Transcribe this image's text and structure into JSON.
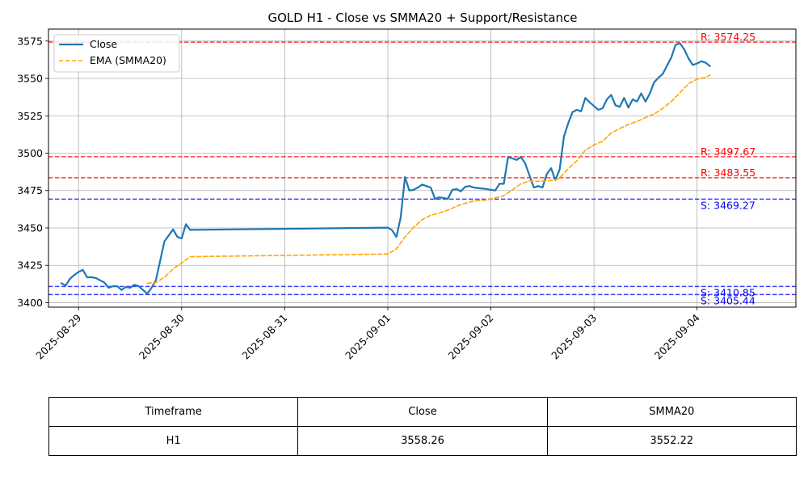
{
  "chart_data": {
    "type": "line",
    "title": "GOLD H1 - Close vs SMMA20 + Support/Resistance",
    "xlabel": "",
    "ylabel": "",
    "ylim": [
      3397,
      3583
    ],
    "xlim": [
      "2025-08-28 17:00",
      "2025-09-04 23:00"
    ],
    "x_ticks": [
      "2025-08-29",
      "2025-08-30",
      "2025-08-31",
      "2025-09-01",
      "2025-09-02",
      "2025-09-03",
      "2025-09-04"
    ],
    "y_ticks": [
      3400,
      3425,
      3450,
      3475,
      3500,
      3525,
      3550,
      3575
    ],
    "grid": true,
    "legend": {
      "placement": "top-left",
      "entries": [
        "Close",
        "EMA (SMMA20)"
      ]
    },
    "colors": {
      "close": "#1f77b4",
      "smma": "#ffa500",
      "resistance": "#ff0000",
      "support": "#0000ff",
      "grid": "#b0b0b0"
    },
    "series": [
      {
        "name": "Close",
        "style": "solid",
        "points": [
          [
            "2025-08-28 20:00",
            3413
          ],
          [
            "2025-08-28 21:00",
            3411.5
          ],
          [
            "2025-08-28 22:00",
            3416
          ],
          [
            "2025-08-28 23:00",
            3418.5
          ],
          [
            "2025-08-29 00:00",
            3420.5
          ],
          [
            "2025-08-29 01:00",
            3422
          ],
          [
            "2025-08-29 02:00",
            3417
          ],
          [
            "2025-08-29 03:00",
            3417
          ],
          [
            "2025-08-29 04:00",
            3416.5
          ],
          [
            "2025-08-29 05:00",
            3415
          ],
          [
            "2025-08-29 06:00",
            3413.5
          ],
          [
            "2025-08-29 07:00",
            3410
          ],
          [
            "2025-08-29 08:00",
            3411
          ],
          [
            "2025-08-29 09:00",
            3411
          ],
          [
            "2025-08-29 10:00",
            3408.5
          ],
          [
            "2025-08-29 11:00",
            3410.5
          ],
          [
            "2025-08-29 12:00",
            3410
          ],
          [
            "2025-08-29 13:00",
            3412
          ],
          [
            "2025-08-29 14:00",
            3411
          ],
          [
            "2025-08-29 15:00",
            3408.5
          ],
          [
            "2025-08-29 16:00",
            3406
          ],
          [
            "2025-08-29 17:00",
            3410
          ],
          [
            "2025-08-29 18:00",
            3415
          ],
          [
            "2025-08-29 19:00",
            3428
          ],
          [
            "2025-08-29 20:00",
            3441
          ],
          [
            "2025-08-29 21:00",
            3445
          ],
          [
            "2025-08-29 22:00",
            3449
          ],
          [
            "2025-08-29 23:00",
            3444
          ],
          [
            "2025-08-30 00:00",
            3443
          ],
          [
            "2025-08-30 01:00",
            3452.5
          ],
          [
            "2025-08-30 02:00",
            3448.7
          ],
          [
            "2025-09-01 00:00",
            3450.2
          ],
          [
            "2025-09-01 01:00",
            3448.5
          ],
          [
            "2025-09-01 02:00",
            3444
          ],
          [
            "2025-09-01 03:00",
            3457
          ],
          [
            "2025-09-01 04:00",
            3484
          ],
          [
            "2025-09-01 05:00",
            3475
          ],
          [
            "2025-09-01 06:00",
            3475.5
          ],
          [
            "2025-09-01 07:00",
            3477
          ],
          [
            "2025-09-01 08:00",
            3479
          ],
          [
            "2025-09-01 09:00",
            3478
          ],
          [
            "2025-09-01 10:00",
            3477
          ],
          [
            "2025-09-01 11:00",
            3469.5
          ],
          [
            "2025-09-01 12:00",
            3470.5
          ],
          [
            "2025-09-01 13:00",
            3470
          ],
          [
            "2025-09-01 14:00",
            3469.5
          ],
          [
            "2025-09-01 15:00",
            3475.5
          ],
          [
            "2025-09-01 16:00",
            3476
          ],
          [
            "2025-09-01 17:00",
            3474.5
          ],
          [
            "2025-09-01 18:00",
            3477.5
          ],
          [
            "2025-09-01 19:00",
            3478
          ],
          [
            "2025-09-01 20:00",
            3477
          ],
          [
            "2025-09-01 23:00",
            3476
          ],
          [
            "2025-09-02 01:00",
            3475
          ],
          [
            "2025-09-02 02:00",
            3479.5
          ],
          [
            "2025-09-02 03:00",
            3479.5
          ],
          [
            "2025-09-02 04:00",
            3497.5
          ],
          [
            "2025-09-02 05:00",
            3496.5
          ],
          [
            "2025-09-02 06:00",
            3495.5
          ],
          [
            "2025-09-02 07:00",
            3497.5
          ],
          [
            "2025-09-02 08:00",
            3493
          ],
          [
            "2025-09-02 09:00",
            3485
          ],
          [
            "2025-09-02 10:00",
            3477
          ],
          [
            "2025-09-02 11:00",
            3478
          ],
          [
            "2025-09-02 12:00",
            3477
          ],
          [
            "2025-09-02 13:00",
            3486
          ],
          [
            "2025-09-02 14:00",
            3490
          ],
          [
            "2025-09-02 15:00",
            3482
          ],
          [
            "2025-09-02 16:00",
            3489
          ],
          [
            "2025-09-02 17:00",
            3511
          ],
          [
            "2025-09-02 18:00",
            3520
          ],
          [
            "2025-09-02 19:00",
            3527.5
          ],
          [
            "2025-09-02 20:00",
            3529
          ],
          [
            "2025-09-02 21:00",
            3528
          ],
          [
            "2025-09-02 22:00",
            3537
          ],
          [
            "2025-09-02 23:00",
            3534
          ],
          [
            "2025-09-03 00:00",
            3531.5
          ],
          [
            "2025-09-03 01:00",
            3529
          ],
          [
            "2025-09-03 02:00",
            3530
          ],
          [
            "2025-09-03 03:00",
            3536
          ],
          [
            "2025-09-03 04:00",
            3539
          ],
          [
            "2025-09-03 05:00",
            3532
          ],
          [
            "2025-09-03 06:00",
            3531
          ],
          [
            "2025-09-03 07:00",
            3537
          ],
          [
            "2025-09-03 08:00",
            3530.5
          ],
          [
            "2025-09-03 09:00",
            3536
          ],
          [
            "2025-09-03 10:00",
            3534.5
          ],
          [
            "2025-09-03 11:00",
            3540
          ],
          [
            "2025-09-03 12:00",
            3534.5
          ],
          [
            "2025-09-03 13:00",
            3540
          ],
          [
            "2025-09-03 14:00",
            3547.5
          ],
          [
            "2025-09-03 15:00",
            3550.5
          ],
          [
            "2025-09-03 16:00",
            3553
          ],
          [
            "2025-09-03 17:00",
            3558.5
          ],
          [
            "2025-09-03 18:00",
            3564
          ],
          [
            "2025-09-03 19:00",
            3572.5
          ],
          [
            "2025-09-03 20:00",
            3573.5
          ],
          [
            "2025-09-03 21:00",
            3569.5
          ],
          [
            "2025-09-03 22:00",
            3563.5
          ],
          [
            "2025-09-03 23:00",
            3559
          ],
          [
            "2025-09-04 00:00",
            3560
          ],
          [
            "2025-09-04 01:00",
            3561.5
          ],
          [
            "2025-09-04 02:00",
            3560.5
          ],
          [
            "2025-09-04 03:00",
            3558.26
          ]
        ]
      },
      {
        "name": "EMA (SMMA20)",
        "style": "dashed",
        "points": [
          [
            "2025-08-29 16:00",
            3413
          ],
          [
            "2025-08-29 18:00",
            3413.5
          ],
          [
            "2025-08-29 20:00",
            3417
          ],
          [
            "2025-08-29 22:00",
            3422.5
          ],
          [
            "2025-08-30 00:00",
            3426.5
          ],
          [
            "2025-08-30 02:00",
            3430.8
          ],
          [
            "2025-09-01 00:00",
            3432.5
          ],
          [
            "2025-09-01 02:00",
            3436
          ],
          [
            "2025-09-01 04:00",
            3444
          ],
          [
            "2025-09-01 06:00",
            3450.5
          ],
          [
            "2025-09-01 08:00",
            3455.5
          ],
          [
            "2025-09-01 10:00",
            3458.5
          ],
          [
            "2025-09-01 12:00",
            3460
          ],
          [
            "2025-09-01 14:00",
            3462
          ],
          [
            "2025-09-01 16:00",
            3464.5
          ],
          [
            "2025-09-01 18:00",
            3466.5
          ],
          [
            "2025-09-01 20:00",
            3468
          ],
          [
            "2025-09-01 23:00",
            3468.7
          ],
          [
            "2025-09-02 03:00",
            3471.5
          ],
          [
            "2025-09-02 05:00",
            3475.5
          ],
          [
            "2025-09-02 07:00",
            3479.5
          ],
          [
            "2025-09-02 09:00",
            3481.5
          ],
          [
            "2025-09-02 11:00",
            3481.2
          ],
          [
            "2025-09-02 13:00",
            3481.5
          ],
          [
            "2025-09-02 15:00",
            3482
          ],
          [
            "2025-09-02 16:00",
            3483.5
          ],
          [
            "2025-09-02 18:00",
            3489.5
          ],
          [
            "2025-09-02 20:00",
            3495
          ],
          [
            "2025-09-02 22:00",
            3502
          ],
          [
            "2025-09-03 00:00",
            3505.5
          ],
          [
            "2025-09-03 02:00",
            3508
          ],
          [
            "2025-09-03 04:00",
            3513.5
          ],
          [
            "2025-09-03 06:00",
            3516.5
          ],
          [
            "2025-09-03 08:00",
            3519.2
          ],
          [
            "2025-09-03 10:00",
            3521.2
          ],
          [
            "2025-09-03 12:00",
            3523.8
          ],
          [
            "2025-09-03 14:00",
            3526.2
          ],
          [
            "2025-09-03 16:00",
            3530
          ],
          [
            "2025-09-03 18:00",
            3534.5
          ],
          [
            "2025-09-03 20:00",
            3540.5
          ],
          [
            "2025-09-03 22:00",
            3546.5
          ],
          [
            "2025-09-04 00:00",
            3549.5
          ],
          [
            "2025-09-04 02:00",
            3550.7
          ],
          [
            "2025-09-04 03:00",
            3552.22
          ]
        ]
      }
    ],
    "levels": [
      {
        "kind": "resistance",
        "value": 3574.25,
        "label": "R: 3574.25"
      },
      {
        "kind": "resistance",
        "value": 3497.67,
        "label": "R: 3497.67"
      },
      {
        "kind": "resistance",
        "value": 3483.55,
        "label": "R: 3483.55"
      },
      {
        "kind": "support",
        "value": 3469.27,
        "label": "S: 3469.27"
      },
      {
        "kind": "support",
        "value": 3410.85,
        "label": "S: 3410.85"
      },
      {
        "kind": "support",
        "value": 3405.44,
        "label": "S: 3405.44"
      }
    ]
  },
  "table": {
    "headers": [
      "Timeframe",
      "Close",
      "SMMA20"
    ],
    "rows": [
      [
        "H1",
        "3558.26",
        "3552.22"
      ]
    ]
  }
}
